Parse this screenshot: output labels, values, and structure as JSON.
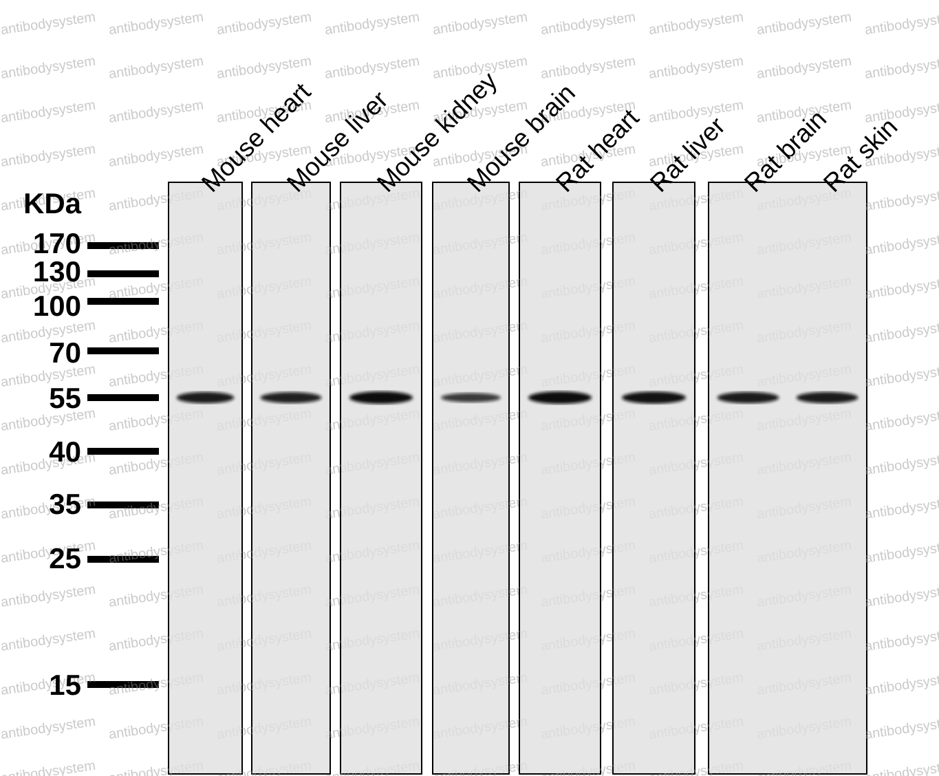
{
  "watermark": "antibodysystem",
  "units_label": "KDa",
  "markers": [
    {
      "label": "170",
      "kda": 170
    },
    {
      "label": "130",
      "kda": 130
    },
    {
      "label": "100",
      "kda": 100
    },
    {
      "label": "70",
      "kda": 70
    },
    {
      "label": "55",
      "kda": 55
    },
    {
      "label": "40",
      "kda": 40
    },
    {
      "label": "35",
      "kda": 35
    },
    {
      "label": "25",
      "kda": 25
    },
    {
      "label": "15",
      "kda": 15
    }
  ],
  "lanes": [
    {
      "label": "Mouse heart",
      "band_kda": 55,
      "intensity": 0.85
    },
    {
      "label": "Mouse liver",
      "band_kda": 55,
      "intensity": 0.8
    },
    {
      "label": "Mouse kidney",
      "band_kda": 55,
      "intensity": 1.0
    },
    {
      "label": "Mouse brain",
      "band_kda": 55,
      "intensity": 0.55
    },
    {
      "label": "Rat heart",
      "band_kda": 55,
      "intensity": 1.0
    },
    {
      "label": "Rat liver",
      "band_kda": 55,
      "intensity": 0.95
    },
    {
      "label": "Rat brain",
      "band_kda": 55,
      "intensity": 0.85
    },
    {
      "label": "Rat skin",
      "band_kda": 55,
      "intensity": 0.85
    }
  ],
  "colors": {
    "membrane": "#e6e6e6",
    "band": "#0a0a0a",
    "watermark": "#c8c8c8"
  }
}
